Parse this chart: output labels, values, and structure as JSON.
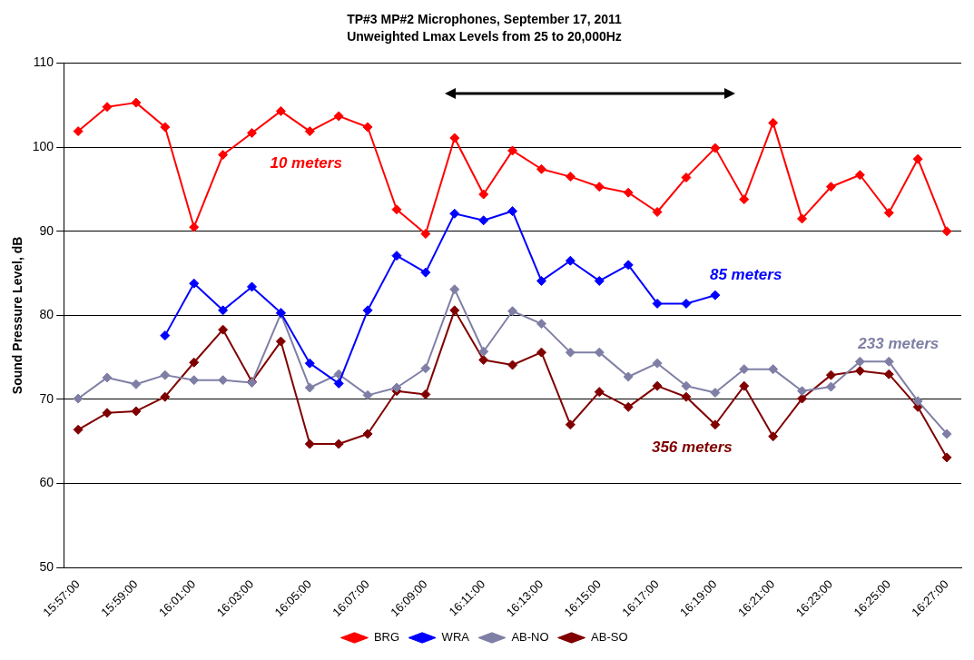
{
  "chart_data": {
    "type": "line",
    "title": "TP#3 MP#2 Microphones, September 17, 2011",
    "subtitle": "Unweighted Lmax Levels from 25 to 20,000Hz",
    "ylabel": "Sound Pressure Level, dB",
    "categories": [
      "15:57:00",
      null,
      "15:59:00",
      null,
      "16:01:00",
      null,
      "16:03:00",
      null,
      "16:05:00",
      null,
      "16:07:00",
      null,
      "16:09:00",
      null,
      "16:11:00",
      null,
      "16:13:00",
      null,
      "16:15:00",
      null,
      "16:17:00",
      null,
      "16:19:00",
      null,
      "16:21:00",
      null,
      "16:23:00",
      null,
      "16:25:00",
      null,
      "16:27:00"
    ],
    "series": [
      {
        "name": "BRG",
        "color": "#ff0000",
        "values": [
          101.9,
          104.8,
          105.3,
          102.4,
          90.5,
          99.1,
          101.7,
          104.3,
          101.9,
          103.7,
          102.4,
          92.6,
          89.7,
          101.1,
          94.4,
          99.6,
          97.4,
          96.5,
          95.3,
          94.6,
          92.3,
          96.4,
          99.9,
          93.8,
          102.9,
          91.5,
          95.3,
          96.7,
          92.2,
          98.6,
          90.0
        ]
      },
      {
        "name": "WRA",
        "color": "#0000ff",
        "values": [
          null,
          null,
          null,
          77.6,
          83.8,
          80.6,
          83.4,
          80.3,
          74.3,
          71.9,
          80.6,
          87.1,
          85.1,
          92.1,
          91.3,
          92.4,
          84.1,
          86.5,
          84.1,
          86.0,
          81.4,
          81.4,
          82.4,
          null,
          null,
          null,
          null,
          null,
          null,
          null,
          null
        ]
      },
      {
        "name": "AB-NO",
        "color": "#7f7fa6",
        "values": [
          70.1,
          72.6,
          71.8,
          72.9,
          72.3,
          72.3,
          72.0,
          80.2,
          71.4,
          73.0,
          70.5,
          71.4,
          73.7,
          83.1,
          75.7,
          80.5,
          79.0,
          75.6,
          75.6,
          72.7,
          74.3,
          71.6,
          70.8,
          73.6,
          73.6,
          71.0,
          71.5,
          74.5,
          74.5,
          69.8,
          65.9
        ]
      },
      {
        "name": "AB-SO",
        "color": "#800000",
        "values": [
          66.4,
          68.4,
          68.6,
          70.3,
          74.4,
          78.3,
          72.1,
          76.9,
          64.7,
          64.7,
          65.9,
          71.0,
          70.6,
          80.6,
          74.7,
          74.1,
          75.6,
          67.0,
          70.9,
          69.1,
          71.6,
          70.3,
          67.0,
          71.6,
          65.6,
          70.1,
          72.9,
          73.4,
          73.0,
          69.1,
          63.1
        ]
      }
    ],
    "annotations": [
      "10 meters",
      "85 meters",
      "233 meters",
      "356 meters"
    ],
    "ylim": [
      50,
      110
    ],
    "yticks": [
      50,
      60,
      70,
      80,
      90,
      100,
      110
    ],
    "grid": "y",
    "legend": "bottom",
    "marker": "diamond",
    "line_style": "solid"
  }
}
